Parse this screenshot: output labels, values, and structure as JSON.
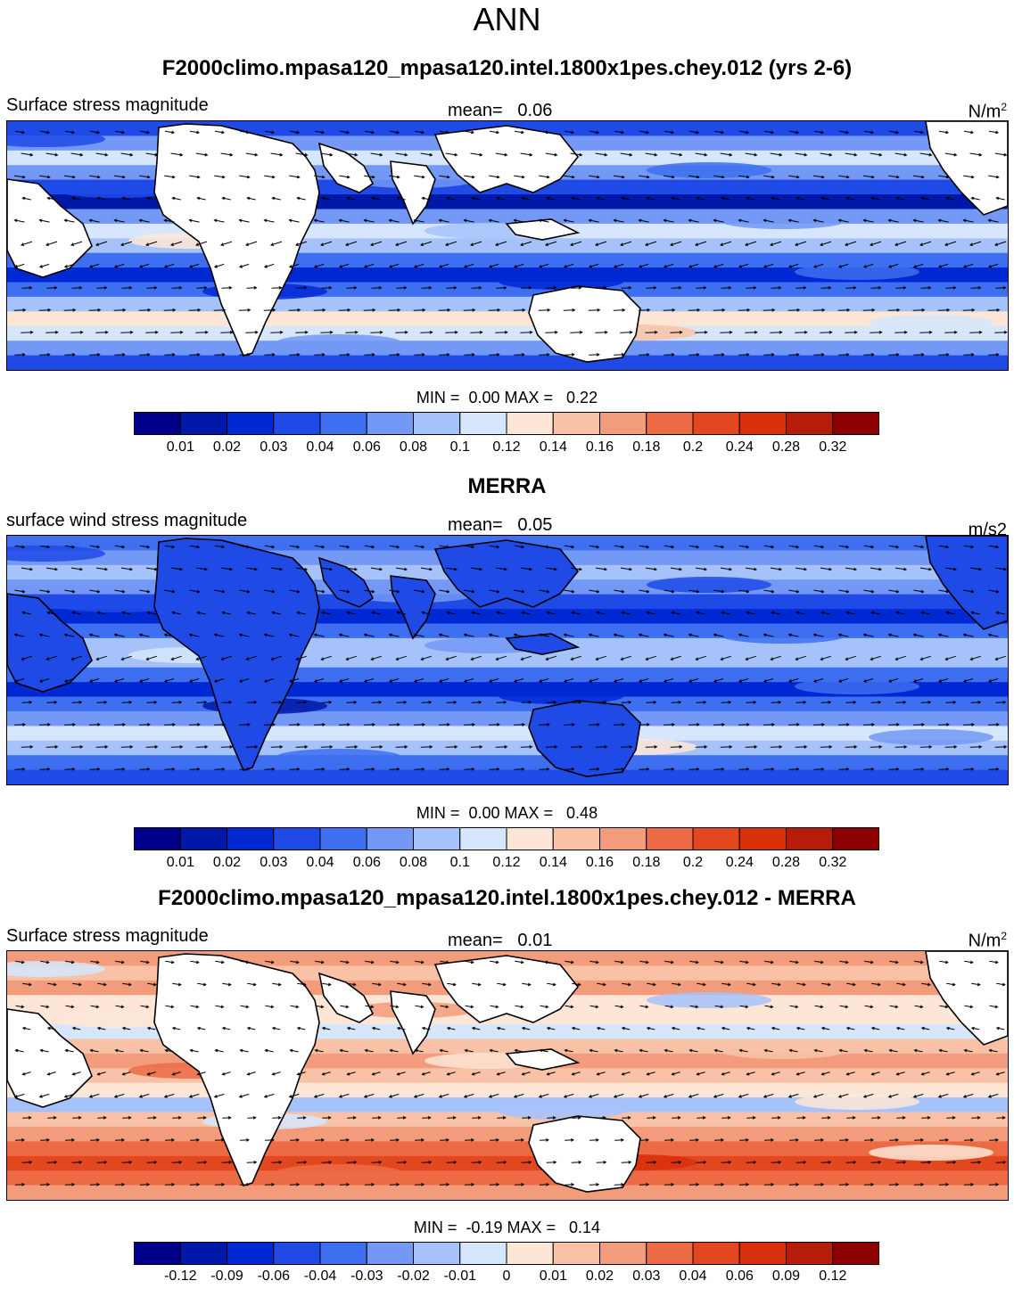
{
  "page_title": "ANN",
  "colors": {
    "seq": [
      "#00008b",
      "#0018a8",
      "#0029d4",
      "#1f4ae6",
      "#3d6ff0",
      "#7398f5",
      "#a6c2fa",
      "#d5e6fd",
      "#fde6d6",
      "#f9c2a6",
      "#f39c7b",
      "#ec6b45",
      "#e3471f",
      "#d9300c",
      "#b51c0a",
      "#8b0000"
    ],
    "land": "#ffffff",
    "coast": "#000000",
    "arrow": "#000000"
  },
  "panels": [
    {
      "title": "F2000climo.mpasa120_mpasa120.intel.1800x1pes.chey.012 (yrs 2-6)",
      "left_label": "Surface stress magnitude",
      "mean_label": "mean=",
      "mean_value": "0.06",
      "units": "N/m",
      "units_sup": "2",
      "min_label": "MIN =",
      "min_value": "0.00",
      "max_label": "MAX =",
      "max_value": "0.22",
      "colorbar_ticks": [
        "0.01",
        "0.02",
        "0.03",
        "0.04",
        "0.06",
        "0.08",
        "0.1",
        "0.12",
        "0.14",
        "0.16",
        "0.18",
        "0.2",
        "0.24",
        "0.28",
        "0.32"
      ]
    },
    {
      "title": "MERRA",
      "left_label": "surface wind stress magnitude",
      "mean_label": "mean=",
      "mean_value": "0.05",
      "units": "m/s2",
      "units_sup": "",
      "min_label": "MIN =",
      "min_value": "0.00",
      "max_label": "MAX =",
      "max_value": "0.48",
      "colorbar_ticks": [
        "0.01",
        "0.02",
        "0.03",
        "0.04",
        "0.06",
        "0.08",
        "0.1",
        "0.12",
        "0.14",
        "0.16",
        "0.18",
        "0.2",
        "0.24",
        "0.28",
        "0.32"
      ]
    },
    {
      "title": "F2000climo.mpasa120_mpasa120.intel.1800x1pes.chey.012 - MERRA",
      "left_label": "Surface stress magnitude",
      "mean_label": "mean=",
      "mean_value": "0.01",
      "units": "N/m",
      "units_sup": "2",
      "min_label": "MIN =",
      "min_value": "-0.19",
      "max_label": "MAX =",
      "max_value": "0.14",
      "colorbar_ticks": [
        "-0.12",
        "-0.09",
        "-0.06",
        "-0.04",
        "-0.03",
        "-0.02",
        "-0.01",
        "0",
        "0.01",
        "0.02",
        "0.03",
        "0.04",
        "0.06",
        "0.09",
        "0.12"
      ]
    }
  ],
  "chart_data": [
    {
      "type": "heatmap",
      "title": "F2000climo.mpasa120_mpasa120.intel.1800x1pes.chey.012 (yrs 2-6)",
      "variable": "Surface stress magnitude",
      "units": "N/m2",
      "mean": 0.06,
      "min": 0.0,
      "max": 0.22,
      "levels": [
        0.01,
        0.02,
        0.03,
        0.04,
        0.06,
        0.08,
        0.1,
        0.12,
        0.14,
        0.16,
        0.18,
        0.2,
        0.24,
        0.28,
        0.32
      ],
      "zonal_bands": [
        0.03,
        0.06,
        0.1,
        0.07,
        0.03,
        0.015,
        0.06,
        0.11,
        0.09,
        0.04,
        0.02,
        0.05,
        0.09,
        0.13,
        0.11,
        0.06,
        0.03
      ]
    },
    {
      "type": "heatmap",
      "title": "MERRA",
      "variable": "surface wind stress magnitude",
      "units": "m/s2",
      "mean": 0.05,
      "min": 0.0,
      "max": 0.48,
      "levels": [
        0.01,
        0.02,
        0.03,
        0.04,
        0.06,
        0.08,
        0.1,
        0.12,
        0.14,
        0.16,
        0.18,
        0.2,
        0.24,
        0.28,
        0.32
      ],
      "zonal_bands": [
        0.04,
        0.06,
        0.08,
        0.06,
        0.03,
        0.02,
        0.05,
        0.09,
        0.08,
        0.04,
        0.02,
        0.04,
        0.07,
        0.1,
        0.09,
        0.05,
        0.03
      ]
    },
    {
      "type": "heatmap",
      "title": "F2000climo.mpasa120_mpasa120.intel.1800x1pes.chey.012 - MERRA",
      "variable": "Surface stress magnitude",
      "units": "N/m2",
      "mean": 0.01,
      "min": -0.19,
      "max": 0.14,
      "levels": [
        -0.12,
        -0.09,
        -0.06,
        -0.04,
        -0.03,
        -0.02,
        -0.01,
        0,
        0.01,
        0.02,
        0.03,
        0.04,
        0.06,
        0.09,
        0.12
      ],
      "zonal_bands": [
        0.02,
        0.01,
        0.02,
        0.005,
        0.0,
        -0.01,
        0.01,
        0.02,
        0.015,
        0.0,
        -0.015,
        0.01,
        0.02,
        0.03,
        0.04,
        0.03,
        0.02
      ]
    }
  ]
}
